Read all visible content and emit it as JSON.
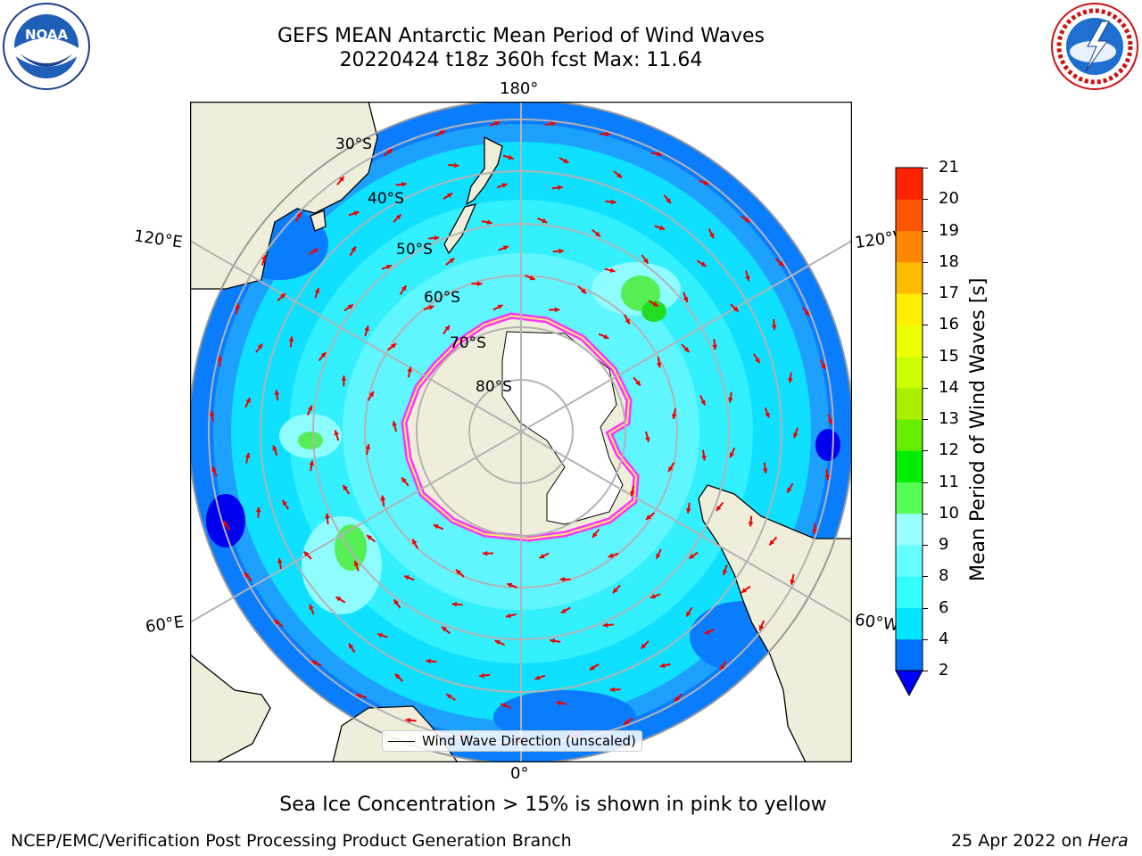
{
  "header": {
    "title": "GEFS MEAN Antarctic Mean Period of Wind Waves",
    "subtitle": "20220424 t18z 360h fcst   Max: 11.64"
  },
  "logos": {
    "left": {
      "icon": "noaa-logo",
      "text": "NOAA"
    },
    "right": {
      "icon": "nws-logo",
      "text": "NATIONAL WEATHER SERVICE"
    }
  },
  "map": {
    "longitude_labels": {
      "top": "180°",
      "bottom": "0°",
      "upper_left": "120°E",
      "lower_left": "60°E",
      "upper_right": "120°W",
      "lower_right": "60°W"
    },
    "latitude_labels": [
      "30°S",
      "40°S",
      "50°S",
      "60°S",
      "70°S",
      "80°S"
    ],
    "legend_label": "Wind Wave Direction (unscaled)"
  },
  "colorbar": {
    "title": "Mean Period of Wind Waves [s]",
    "ticks": [
      "2",
      "4",
      "6",
      "8",
      "9",
      "10",
      "11",
      "12",
      "13",
      "14",
      "15",
      "16",
      "17",
      "18",
      "19",
      "20",
      "21"
    ],
    "colors": [
      "#0072ff",
      "#00e5ff",
      "#33ffff",
      "#66ffff",
      "#99ffff",
      "#55ff55",
      "#00ee00",
      "#66ee00",
      "#aaee00",
      "#ccff00",
      "#eeff00",
      "#ffee00",
      "#ffbb00",
      "#ff8800",
      "#ff5500",
      "#ff2200",
      "#ff0000"
    ],
    "extend_color": "#0000ff"
  },
  "footer": {
    "note": "Sea Ice Concentration > 15% is shown in pink to yellow",
    "credit_left": "NCEP/EMC/Verification Post Processing Product Generation Branch",
    "credit_right_date": "25 Apr 2022 on ",
    "credit_right_host": "Hera"
  }
}
